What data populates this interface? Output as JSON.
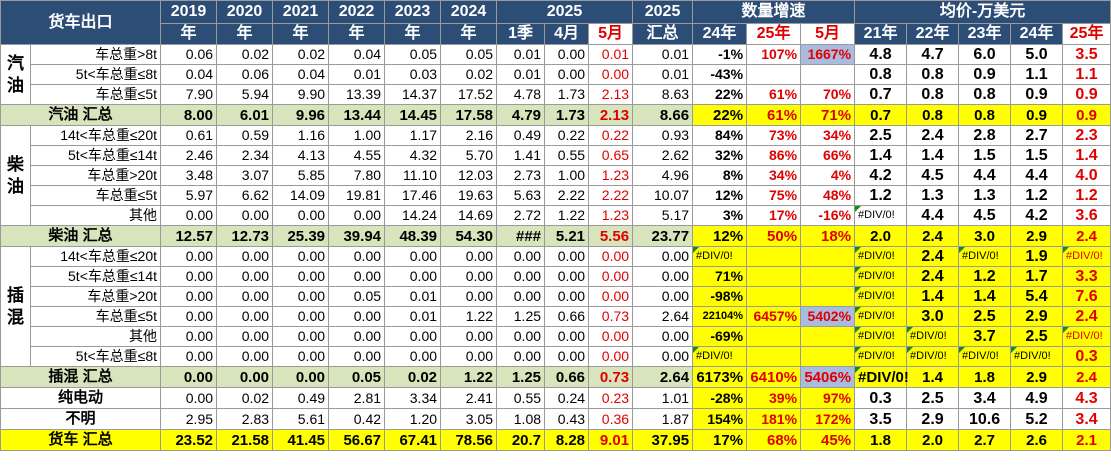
{
  "header": {
    "title": "货车出口",
    "years": [
      [
        "2019",
        "年"
      ],
      [
        "2020",
        "年"
      ],
      [
        "2021",
        "年"
      ],
      [
        "2022",
        "年"
      ],
      [
        "2023",
        "年"
      ],
      [
        "2024",
        "年"
      ]
    ],
    "y2025": "2025",
    "q1": "1季",
    "apr": "4月",
    "may": "5月",
    "total_top": "2025",
    "total_bottom": "汇总",
    "growth": "数量增速",
    "g24": "24年",
    "g25": "25年",
    "gmay": "5月",
    "price": "均价-万美元",
    "p21": "21年",
    "p22": "22年",
    "p23": "23年",
    "p24": "24年",
    "p25": "25年"
  },
  "groups": [
    {
      "name": "汽油",
      "rows": [
        {
          "label": "车总重>8t",
          "vals": [
            "0.06",
            "0.02",
            "0.02",
            "0.04",
            "0.05",
            "0.05",
            "0.01",
            "0.00",
            "0.01",
            "0.01"
          ],
          "g24": "-1%",
          "g25": "107%",
          "gmay": "1667%",
          "gmay_blue": true,
          "p": [
            "4.8",
            "4.7",
            "6.0",
            "5.0",
            "3.5"
          ]
        },
        {
          "label": "5t<车总重≤8t",
          "vals": [
            "0.04",
            "0.06",
            "0.04",
            "0.01",
            "0.03",
            "0.02",
            "0.01",
            "0.00",
            "0.00",
            "0.01"
          ],
          "g24": "-43%",
          "g25": "",
          "gmay": "",
          "p": [
            "0.8",
            "0.8",
            "0.9",
            "1.1",
            "1.1"
          ]
        },
        {
          "label": "车总重≤5t",
          "vals": [
            "7.90",
            "5.94",
            "9.90",
            "13.39",
            "14.37",
            "17.52",
            "4.78",
            "1.73",
            "2.13",
            "8.63"
          ],
          "g24": "22%",
          "g25": "61%",
          "gmay": "70%",
          "p": [
            "0.7",
            "0.8",
            "0.8",
            "0.9",
            "0.9"
          ]
        }
      ],
      "subtotal": {
        "label": "汽油 汇总",
        "vals": [
          "8.00",
          "6.01",
          "9.96",
          "13.44",
          "14.45",
          "17.58",
          "4.79",
          "1.73",
          "2.13",
          "8.66"
        ],
        "g24": "22%",
        "g25": "61%",
        "gmay": "71%",
        "p": [
          "0.7",
          "0.8",
          "0.8",
          "0.9",
          "0.9"
        ]
      }
    },
    {
      "name": "柴油",
      "rows": [
        {
          "label": "14t<车总重≤20t",
          "vals": [
            "0.61",
            "0.59",
            "1.16",
            "1.00",
            "1.17",
            "2.16",
            "0.49",
            "0.22",
            "0.22",
            "0.93"
          ],
          "g24": "84%",
          "g25": "73%",
          "gmay": "34%",
          "p": [
            "2.5",
            "2.4",
            "2.8",
            "2.7",
            "2.3"
          ]
        },
        {
          "label": "5t<车总重≤14t",
          "vals": [
            "2.46",
            "2.34",
            "4.13",
            "4.55",
            "4.32",
            "5.70",
            "1.41",
            "0.55",
            "0.65",
            "2.62"
          ],
          "g24": "32%",
          "g25": "86%",
          "gmay": "66%",
          "p": [
            "1.4",
            "1.4",
            "1.5",
            "1.5",
            "1.4"
          ]
        },
        {
          "label": "车总重>20t",
          "vals": [
            "3.48",
            "3.07",
            "5.85",
            "7.80",
            "11.10",
            "12.03",
            "2.73",
            "1.00",
            "1.23",
            "4.96"
          ],
          "g24": "8%",
          "g25": "34%",
          "gmay": "4%",
          "p": [
            "4.2",
            "4.5",
            "4.4",
            "4.4",
            "4.0"
          ]
        },
        {
          "label": "车总重≤5t",
          "vals": [
            "5.97",
            "6.62",
            "14.09",
            "19.81",
            "17.46",
            "19.63",
            "5.63",
            "2.22",
            "2.22",
            "10.07"
          ],
          "g24": "12%",
          "g25": "75%",
          "gmay": "48%",
          "p": [
            "1.2",
            "1.3",
            "1.3",
            "1.2",
            "1.2"
          ]
        },
        {
          "label": "其他",
          "vals": [
            "0.00",
            "0.00",
            "0.00",
            "0.00",
            "14.24",
            "14.69",
            "2.72",
            "1.22",
            "1.23",
            "5.17"
          ],
          "g24": "3%",
          "g25": "17%",
          "gmay": "-16%",
          "p": [
            "#DIV/0!",
            "4.4",
            "4.5",
            "4.2",
            "3.6"
          ]
        }
      ],
      "subtotal": {
        "label": "柴油 汇总",
        "vals": [
          "12.57",
          "12.73",
          "25.39",
          "39.94",
          "48.39",
          "54.30",
          "###",
          "5.21",
          "5.56",
          "23.77"
        ],
        "g24": "12%",
        "g25": "50%",
        "gmay": "18%",
        "p": [
          "2.0",
          "2.4",
          "3.0",
          "2.9",
          "2.4"
        ]
      }
    },
    {
      "name": "插混",
      "rows": [
        {
          "label": "14t<车总重≤20t",
          "vals": [
            "0.00",
            "0.00",
            "0.00",
            "0.00",
            "0.00",
            "0.00",
            "0.00",
            "0.00",
            "0.00",
            "0.00"
          ],
          "g24": "#DIV/0!",
          "g25": "",
          "gmay": "",
          "p": [
            "#DIV/0!",
            "2.4",
            "#DIV/0!",
            "1.9",
            "#DIV/0!"
          ]
        },
        {
          "label": "5t<车总重≤14t",
          "vals": [
            "0.00",
            "0.00",
            "0.00",
            "0.00",
            "0.00",
            "0.00",
            "0.00",
            "0.00",
            "0.00",
            "0.00"
          ],
          "g24": "71%",
          "g25": "",
          "gmay": "",
          "p": [
            "#DIV/0!",
            "2.4",
            "1.2",
            "1.7",
            "3.3"
          ]
        },
        {
          "label": "车总重>20t",
          "vals": [
            "0.00",
            "0.00",
            "0.00",
            "0.05",
            "0.01",
            "0.00",
            "0.00",
            "0.00",
            "0.00",
            "0.00"
          ],
          "g24": "-98%",
          "g25": "",
          "gmay": "",
          "p": [
            "#DIV/0!",
            "1.4",
            "1.4",
            "5.4",
            "7.6"
          ]
        },
        {
          "label": "车总重≤5t",
          "vals": [
            "0.00",
            "0.00",
            "0.00",
            "0.00",
            "0.01",
            "1.22",
            "1.25",
            "0.66",
            "0.73",
            "2.64"
          ],
          "g24": "22104%",
          "g25": "6457%",
          "gmay": "5402%",
          "gmay_blue": true,
          "p": [
            "#DIV/0!",
            "3.0",
            "2.5",
            "2.9",
            "2.4"
          ]
        },
        {
          "label": "其他",
          "vals": [
            "0.00",
            "0.00",
            "0.00",
            "0.00",
            "0.00",
            "0.00",
            "0.00",
            "0.00",
            "0.00",
            "0.00"
          ],
          "g24": "-69%",
          "g25": "",
          "gmay": "",
          "p": [
            "#DIV/0!",
            "#DIV/0!",
            "3.7",
            "2.5",
            "#DIV/0!"
          ]
        },
        {
          "label": "5t<车总重≤8t",
          "vals": [
            "0.00",
            "0.00",
            "0.00",
            "0.00",
            "0.00",
            "0.00",
            "0.00",
            "0.00",
            "0.00",
            "0.00"
          ],
          "g24": "#DIV/0!",
          "g25": "",
          "gmay": "",
          "p": [
            "#DIV/0!",
            "#DIV/0!",
            "#DIV/0!",
            "#DIV/0!",
            "0.3"
          ]
        }
      ],
      "subtotal": {
        "label": "插混 汇总",
        "vals": [
          "0.00",
          "0.00",
          "0.00",
          "0.05",
          "0.02",
          "1.22",
          "1.25",
          "0.66",
          "0.73",
          "2.64"
        ],
        "g24": "6173%",
        "g25": "6410%",
        "gmay": "5406%",
        "gmay_blue": true,
        "p": [
          "#DIV/0!",
          "1.4",
          "1.8",
          "2.9",
          "2.4"
        ]
      }
    }
  ],
  "ev": {
    "label": "纯电动",
    "vals": [
      "0.00",
      "0.02",
      "0.49",
      "2.81",
      "3.34",
      "2.41",
      "0.55",
      "0.24",
      "0.23",
      "1.01"
    ],
    "g24": "-28%",
    "g25": "39%",
    "gmay": "97%",
    "p": [
      "0.3",
      "2.5",
      "3.4",
      "4.9",
      "4.3"
    ]
  },
  "unknown": {
    "label": "不明",
    "vals": [
      "2.95",
      "2.83",
      "5.61",
      "0.42",
      "1.20",
      "3.05",
      "1.08",
      "0.43",
      "0.36",
      "1.87"
    ],
    "g24": "154%",
    "g25": "181%",
    "gmay": "172%",
    "p": [
      "3.5",
      "2.9",
      "10.6",
      "5.2",
      "3.4"
    ]
  },
  "total": {
    "label": "货车 汇总",
    "vals": [
      "23.52",
      "21.58",
      "41.45",
      "56.67",
      "67.41",
      "78.56",
      "20.7",
      "8.28",
      "9.01",
      "37.95"
    ],
    "g24": "17%",
    "g25": "68%",
    "gmay": "45%",
    "p": [
      "1.8",
      "2.0",
      "2.7",
      "2.6",
      "2.1"
    ]
  }
}
